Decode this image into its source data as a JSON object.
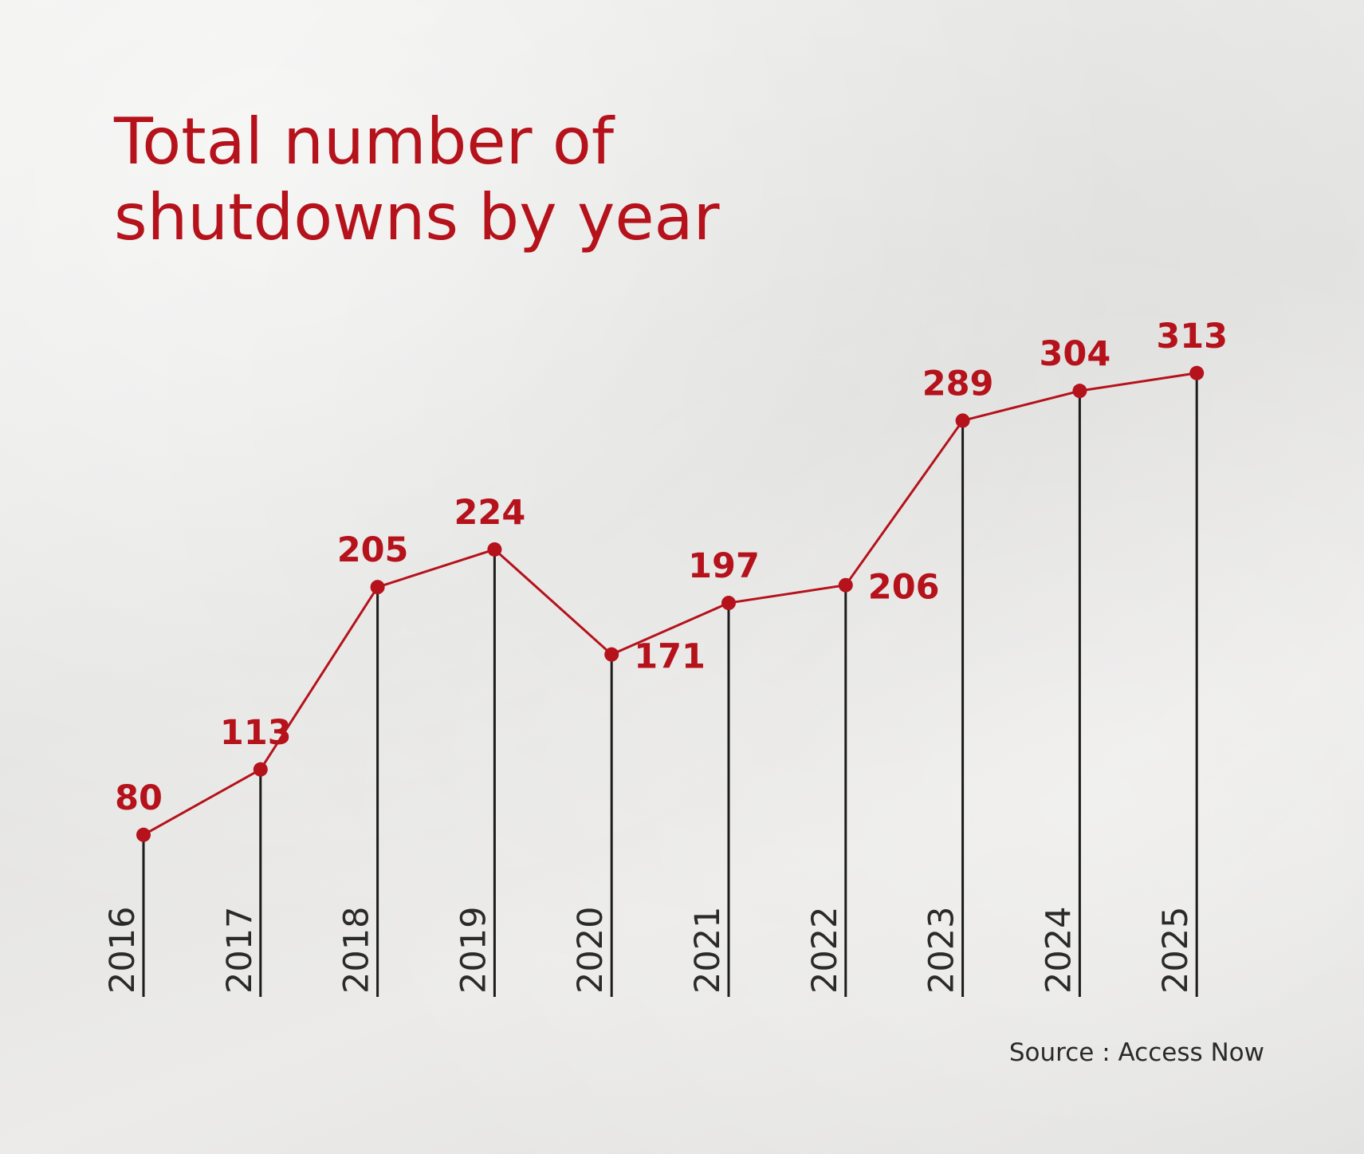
{
  "colors": {
    "accent": "#b5121b",
    "stem": "#1c1c1c",
    "text_dark": "#2a2a2a",
    "background": "#e9e9e7"
  },
  "chart_data": {
    "type": "line",
    "title_lines": [
      "Total number of",
      "shutdowns by year"
    ],
    "categories": [
      "2016",
      "2017",
      "2018",
      "2019",
      "2020",
      "2021",
      "2022",
      "2023",
      "2024",
      "2025"
    ],
    "series": [
      {
        "name": "Total number of shutdowns",
        "values": [
          80,
          113,
          205,
          224,
          171,
          197,
          206,
          289,
          304,
          313
        ]
      }
    ],
    "data_label_side": [
      "above",
      "above",
      "above",
      "above",
      "right",
      "above",
      "right",
      "above",
      "above",
      "above"
    ],
    "xlabel": "",
    "ylabel": "",
    "ylim": [
      0,
      313
    ],
    "grid": false,
    "legend": "none",
    "source": "Source : Access Now"
  }
}
